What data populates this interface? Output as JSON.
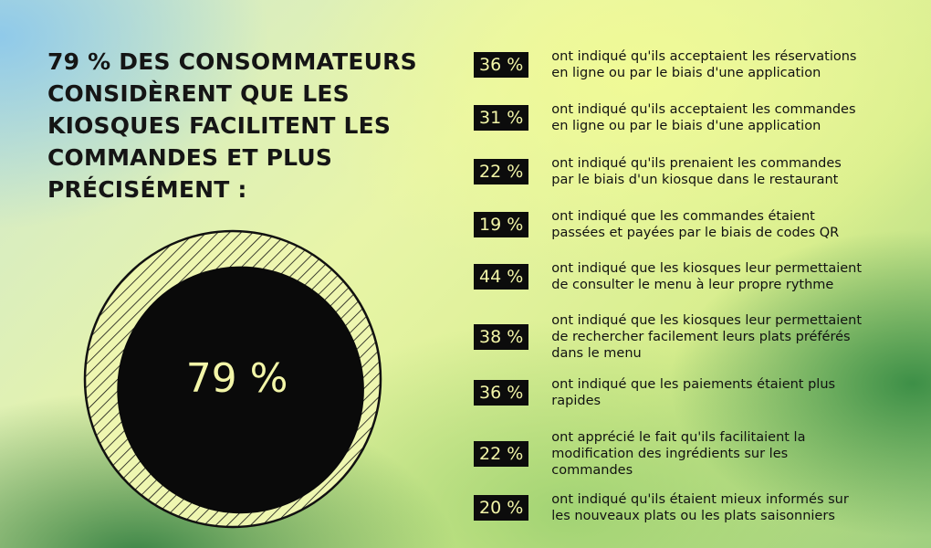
{
  "headline": "79 % DES CONSOMMATEURS CONSIDÈRENT QUE LES KIOSQUES FACILITENT LES COMMANDES ET PLUS PRÉCISÉMENT :",
  "colors": {
    "badge_bg": "#0c0c0c",
    "badge_text": "#f3f6a8",
    "center_text": "#f3f6a8"
  },
  "chart_data": {
    "type": "pie",
    "title": "",
    "center_label": "79 %",
    "values": [
      79,
      21
    ],
    "items": [
      {
        "percent": "36 %",
        "value": 36,
        "text": "ont indiqué qu'ils acceptaient les réservations\nen ligne ou par le biais d'une application"
      },
      {
        "percent": "31 %",
        "value": 31,
        "text": "ont indiqué qu'ils acceptaient les commandes\nen ligne ou par le biais d'une application"
      },
      {
        "percent": "22 %",
        "value": 22,
        "text": "ont indiqué qu'ils prenaient les commandes\npar le biais d'un kiosque dans le restaurant"
      },
      {
        "percent": "19 %",
        "value": 19,
        "text": "ont indiqué que les commandes étaient\npassées et payées par le biais de codes QR"
      },
      {
        "percent": "44 %",
        "value": 44,
        "text": "ont indiqué que les kiosques leur permettaient\nde consulter le menu à leur propre rythme"
      },
      {
        "percent": "38 %",
        "value": 38,
        "text": "ont indiqué que les kiosques leur permettaient\nde rechercher facilement leurs plats préférés\ndans le menu"
      },
      {
        "percent": "36 %",
        "value": 36,
        "text": "ont indiqué que les paiements étaient plus\nrapides"
      },
      {
        "percent": "22 %",
        "value": 22,
        "text": "ont apprécié le fait qu'ils facilitaient la\nmodification des ingrédients sur les\ncommandes"
      },
      {
        "percent": "20 %",
        "value": 20,
        "text": "ont indiqué qu'ils étaient mieux informés sur\nles nouveaux plats ou les plats saisonniers"
      }
    ]
  }
}
